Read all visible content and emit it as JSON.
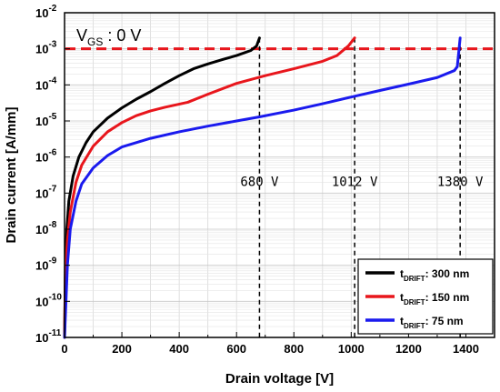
{
  "chart_data": {
    "type": "line",
    "title": "",
    "xlabel": "Drain voltage [V]",
    "ylabel": "Drain current [A/mm]",
    "xlim": [
      0,
      1500
    ],
    "ylim_log10": [
      -11,
      -2
    ],
    "yscale": "log",
    "grid": true,
    "legend_position": "bottom-right",
    "x_ticks": [
      0,
      200,
      400,
      600,
      800,
      1000,
      1200,
      1400
    ],
    "y_ticks": [
      {
        "exp": -11,
        "label": "10",
        "sup": "-11"
      },
      {
        "exp": -10,
        "label": "10",
        "sup": "-10"
      },
      {
        "exp": -9,
        "label": "10",
        "sup": "-9"
      },
      {
        "exp": -8,
        "label": "10",
        "sup": "-8"
      },
      {
        "exp": -7,
        "label": "10",
        "sup": "-7"
      },
      {
        "exp": -6,
        "label": "10",
        "sup": "-6"
      },
      {
        "exp": -5,
        "label": "10",
        "sup": "-5"
      },
      {
        "exp": -4,
        "label": "10",
        "sup": "-4"
      },
      {
        "exp": -3,
        "label": "10",
        "sup": "-3"
      },
      {
        "exp": -2,
        "label": "10",
        "sup": "-2"
      }
    ],
    "condition_label": {
      "main": "V",
      "sub": "GS",
      "rest": " : 0 V"
    },
    "reference_line": {
      "y": 0.001,
      "color": "#e8161c",
      "style": "dashed"
    },
    "breakdown_markers": [
      {
        "x": 680,
        "label": "680 V"
      },
      {
        "x": 1012,
        "label": "1012 V"
      },
      {
        "x": 1380,
        "label": "1380 V"
      }
    ],
    "series": [
      {
        "legend_main": "t",
        "legend_sub": "DRIFT",
        "legend_rest": ": 300 nm",
        "color": "#000000",
        "points": [
          [
            0,
            1e-11
          ],
          [
            3,
            1e-09
          ],
          [
            8,
            1e-08
          ],
          [
            15,
            6e-08
          ],
          [
            30,
            3e-07
          ],
          [
            50,
            1e-06
          ],
          [
            75,
            2.5e-06
          ],
          [
            100,
            5e-06
          ],
          [
            150,
            1.2e-05
          ],
          [
            200,
            2.3e-05
          ],
          [
            250,
            4e-05
          ],
          [
            300,
            6.5e-05
          ],
          [
            350,
            0.00011
          ],
          [
            400,
            0.00018
          ],
          [
            450,
            0.00028
          ],
          [
            500,
            0.00038
          ],
          [
            550,
            0.0005
          ],
          [
            600,
            0.00065
          ],
          [
            650,
            0.0009
          ],
          [
            670,
            0.0012
          ],
          [
            680,
            0.002
          ]
        ]
      },
      {
        "legend_main": "t",
        "legend_sub": "DRIFT",
        "legend_rest": ": 150 nm",
        "color": "#e8161c",
        "points": [
          [
            0,
            1e-11
          ],
          [
            3,
            5e-10
          ],
          [
            10,
            5e-09
          ],
          [
            20,
            3e-08
          ],
          [
            40,
            2e-07
          ],
          [
            60,
            6e-07
          ],
          [
            100,
            2e-06
          ],
          [
            150,
            5e-06
          ],
          [
            200,
            9e-06
          ],
          [
            250,
            1.4e-05
          ],
          [
            300,
            1.9e-05
          ],
          [
            350,
            2.4e-05
          ],
          [
            430,
            3.3e-05
          ],
          [
            500,
            5.5e-05
          ],
          [
            600,
            0.00011
          ],
          [
            700,
            0.00018
          ],
          [
            800,
            0.00028
          ],
          [
            900,
            0.00045
          ],
          [
            950,
            0.00065
          ],
          [
            990,
            0.0012
          ],
          [
            1012,
            0.002
          ]
        ]
      },
      {
        "legend_main": "t",
        "legend_sub": "DRIFT",
        "legend_rest": ": 75 nm",
        "color": "#1a1aee",
        "points": [
          [
            0,
            1e-11
          ],
          [
            5,
            1e-10
          ],
          [
            10,
            1e-09
          ],
          [
            20,
            1e-08
          ],
          [
            40,
            6e-08
          ],
          [
            60,
            1.8e-07
          ],
          [
            100,
            5e-07
          ],
          [
            150,
            1.1e-06
          ],
          [
            200,
            1.9e-06
          ],
          [
            300,
            3.3e-06
          ],
          [
            400,
            5e-06
          ],
          [
            500,
            7.2e-06
          ],
          [
            600,
            1e-05
          ],
          [
            680,
            1.3e-05
          ],
          [
            800,
            2e-05
          ],
          [
            900,
            3e-05
          ],
          [
            1000,
            4.6e-05
          ],
          [
            1100,
            7e-05
          ],
          [
            1200,
            0.000105
          ],
          [
            1300,
            0.00016
          ],
          [
            1360,
            0.00025
          ],
          [
            1370,
            0.00032
          ],
          [
            1380,
            0.002
          ]
        ]
      }
    ]
  }
}
